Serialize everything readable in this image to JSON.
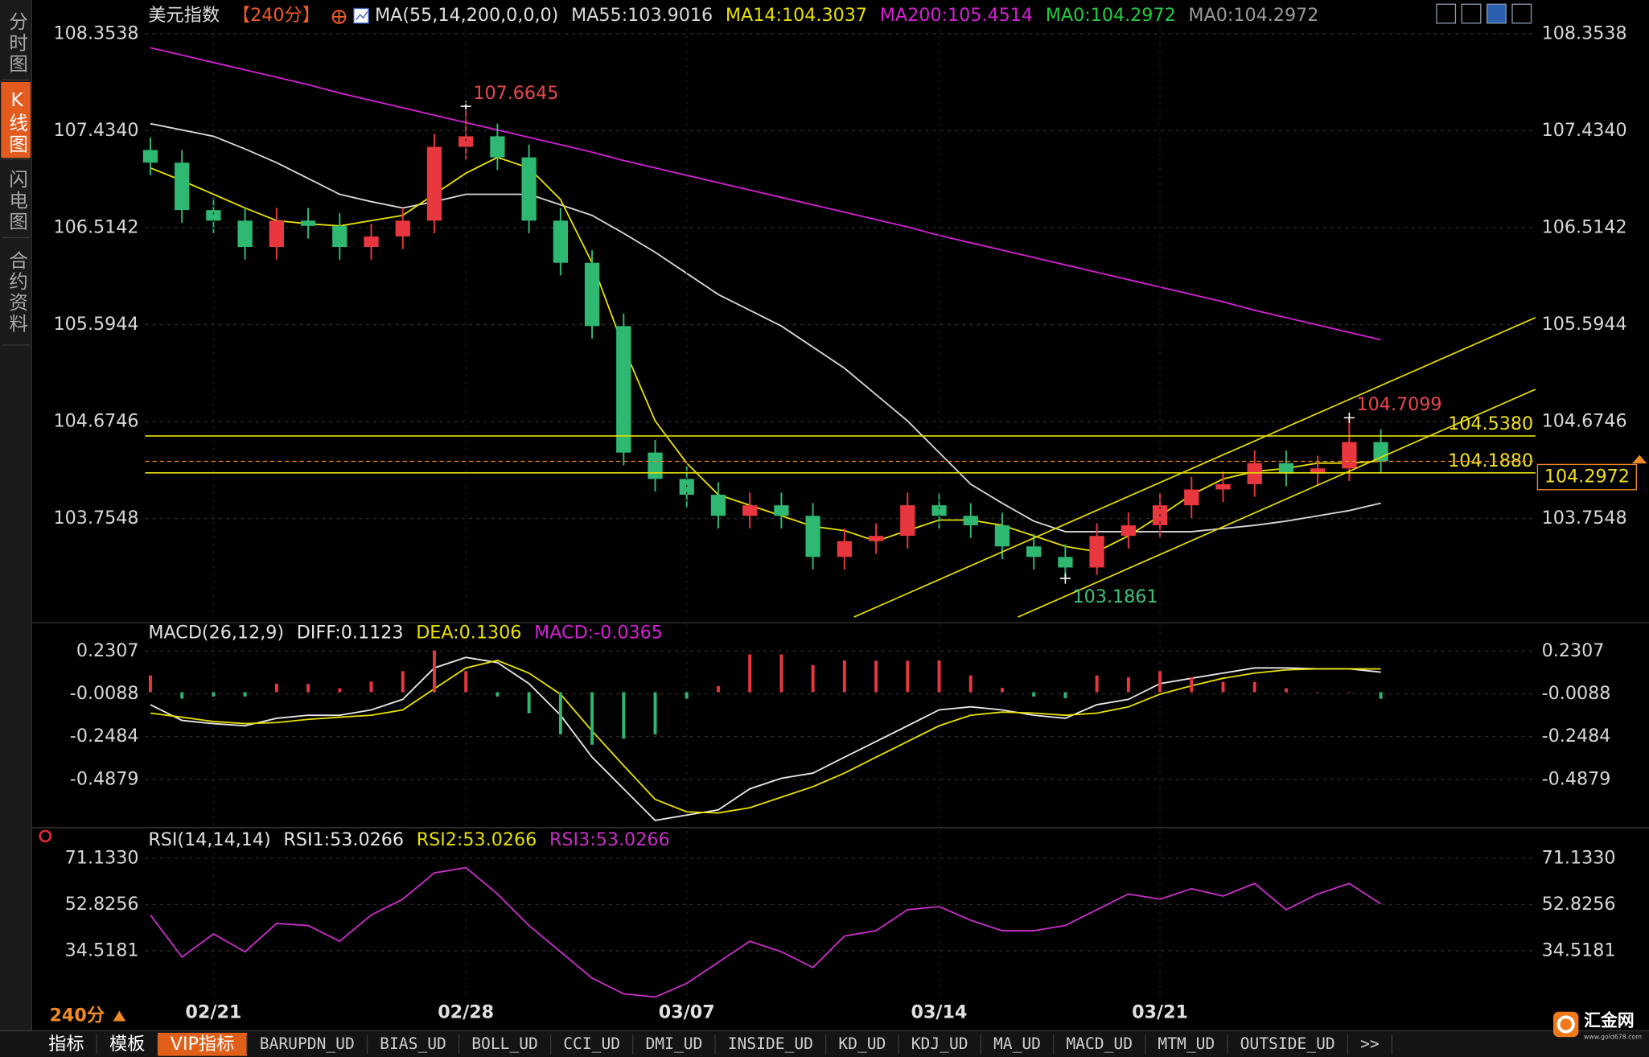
{
  "app": {
    "sidebar": [
      "分时图",
      "K线图",
      "闪电图",
      "合约资料"
    ],
    "active_sidebar": 1,
    "period": "240分",
    "tabs": [
      "指标",
      "模板",
      "VIP指标",
      "BARUPDN_UD",
      "BIAS_UD",
      "BOLL_UD",
      "CCI_UD",
      "DMI_UD",
      "INSIDE_UD",
      "KD_UD",
      "KDJ_UD",
      "MA_UD",
      "MACD_UD",
      "MTM_UD",
      "OUTSIDE_UD",
      ">>"
    ],
    "active_tab": 2,
    "logo": "汇金网",
    "logo_url": "www.gold678.com"
  },
  "chart_data": [
    {
      "type": "candlestick",
      "title": "美元指数",
      "period": "【240分】",
      "indicator": "MA(55,14,200,0,0,0)",
      "categories": [
        null,
        null,
        "02/21",
        null,
        null,
        null,
        null,
        null,
        null,
        null,
        "02/28",
        null,
        null,
        null,
        null,
        null,
        null,
        "03/07",
        null,
        null,
        null,
        null,
        null,
        null,
        null,
        "03/14",
        null,
        null,
        null,
        null,
        null,
        null,
        "03/21",
        null,
        null,
        null,
        null,
        null,
        null,
        null
      ],
      "open": [
        107.25,
        107.13,
        106.68,
        106.58,
        106.33,
        106.58,
        106.53,
        106.33,
        106.43,
        106.58,
        107.28,
        107.38,
        107.18,
        106.58,
        106.18,
        105.58,
        104.38,
        104.13,
        103.98,
        103.78,
        103.88,
        103.78,
        103.39,
        103.54,
        103.59,
        103.88,
        103.78,
        103.69,
        103.49,
        103.39,
        103.29,
        103.59,
        103.69,
        103.88,
        104.03,
        104.08,
        104.28,
        104.18,
        104.23,
        104.48
      ],
      "high": [
        107.37,
        107.25,
        106.8,
        106.7,
        106.7,
        106.7,
        106.65,
        106.55,
        106.7,
        107.4,
        107.6645,
        107.5,
        107.3,
        106.7,
        106.3,
        105.7,
        104.5,
        104.25,
        104.1,
        104.0,
        104.0,
        103.9,
        103.66,
        103.71,
        104.0,
        104.0,
        103.9,
        103.81,
        103.61,
        103.51,
        103.71,
        103.81,
        104.0,
        104.15,
        104.2,
        104.4,
        104.4,
        104.35,
        104.7099,
        104.6
      ],
      "low": [
        107.01,
        106.56,
        106.46,
        106.21,
        106.21,
        106.41,
        106.21,
        106.21,
        106.31,
        106.46,
        107.16,
        107.06,
        106.46,
        106.06,
        105.46,
        104.26,
        104.01,
        103.86,
        103.66,
        103.66,
        103.66,
        103.27,
        103.27,
        103.42,
        103.47,
        103.66,
        103.57,
        103.37,
        103.27,
        103.1861,
        103.22,
        103.47,
        103.57,
        103.76,
        103.91,
        103.96,
        104.06,
        104.06,
        104.11,
        104.18
      ],
      "close": [
        107.13,
        106.68,
        106.58,
        106.33,
        106.58,
        106.53,
        106.33,
        106.43,
        106.58,
        107.28,
        107.38,
        107.18,
        106.58,
        106.18,
        105.58,
        104.38,
        104.13,
        103.98,
        103.78,
        103.88,
        103.78,
        103.39,
        103.54,
        103.59,
        103.88,
        103.78,
        103.69,
        103.49,
        103.39,
        103.29,
        103.59,
        103.69,
        103.88,
        104.03,
        104.08,
        104.28,
        104.18,
        104.23,
        104.48,
        104.2972
      ],
      "up_color": "#e8373e",
      "down_color": "#2eb872",
      "series": [
        {
          "name": "MA55:103.9016",
          "color": "#d8d8d8",
          "values": [
            107.5,
            107.44,
            107.38,
            107.26,
            107.13,
            106.98,
            106.83,
            106.76,
            106.7,
            106.76,
            106.83,
            106.83,
            106.83,
            106.73,
            106.63,
            106.46,
            106.28,
            106.08,
            105.88,
            105.73,
            105.58,
            105.38,
            105.18,
            104.93,
            104.68,
            104.38,
            104.08,
            103.9,
            103.73,
            103.63,
            103.63,
            103.63,
            103.63,
            103.63,
            103.66,
            103.69,
            103.73,
            103.78,
            103.83,
            103.9
          ]
        },
        {
          "name": "MA14:104.3037",
          "color": "#e8e000",
          "values": [
            107.08,
            106.96,
            106.83,
            106.7,
            106.58,
            106.55,
            106.53,
            106.58,
            106.63,
            106.83,
            107.03,
            107.18,
            107.08,
            106.78,
            106.18,
            105.38,
            104.68,
            104.28,
            103.98,
            103.88,
            103.78,
            103.68,
            103.64,
            103.54,
            103.64,
            103.74,
            103.74,
            103.69,
            103.59,
            103.49,
            103.44,
            103.59,
            103.78,
            103.98,
            104.13,
            104.2,
            104.23,
            104.28,
            104.28,
            104.3
          ]
        },
        {
          "name": "MA200:105.4514",
          "color": "#d41fd4",
          "values": [
            108.22,
            108.15,
            108.08,
            108.01,
            107.94,
            107.87,
            107.79,
            107.72,
            107.65,
            107.58,
            107.51,
            107.44,
            107.37,
            107.3,
            107.23,
            107.15,
            107.08,
            107.01,
            106.94,
            106.87,
            106.8,
            106.73,
            106.66,
            106.59,
            106.52,
            106.44,
            106.37,
            106.3,
            106.23,
            106.16,
            106.09,
            106.02,
            105.95,
            105.88,
            105.81,
            105.73,
            105.66,
            105.59,
            105.52,
            105.45
          ]
        }
      ],
      "extra_after": [
        {
          "name": "MA0:104.2972",
          "color": "#22cc44"
        },
        {
          "name": "MA0:104.2972",
          "color": "#9a9a9a"
        }
      ],
      "ylim": [
        102.787,
        108.473
      ],
      "yticks": [
        108.3538,
        {
          "value": 107.434,
          "label": "107.4340"
        },
        106.5142,
        105.5944,
        104.6746,
        103.7548
      ],
      "hlines": [
        {
          "value": 104.538,
          "label": "104.5380"
        },
        {
          "value": 104.188,
          "label": "104.1880"
        }
      ],
      "last": 104.2972,
      "trendlines": [
        {
          "x": [
            22.3,
            43.9
          ],
          "y": [
            102.82,
            105.66
          ]
        },
        {
          "x": [
            27.5,
            43.9
          ],
          "y": [
            102.82,
            104.98
          ]
        }
      ],
      "annotations": [
        {
          "index": 10,
          "at": "high"
        },
        {
          "index": 29,
          "at": "low"
        },
        {
          "index": 38,
          "at": "high"
        }
      ]
    },
    {
      "type": "line",
      "title": "MACD(26,12,9)",
      "series": [
        {
          "name": "DIFF:0.1123",
          "color": "#e8e8e8",
          "values": [
            -0.07,
            -0.158,
            -0.176,
            -0.188,
            -0.146,
            -0.129,
            -0.129,
            -0.099,
            -0.04,
            0.136,
            0.195,
            0.166,
            0.048,
            -0.129,
            -0.364,
            -0.541,
            -0.718,
            -0.688,
            -0.659,
            -0.541,
            -0.482,
            -0.453,
            -0.364,
            -0.276,
            -0.188,
            -0.099,
            -0.082,
            -0.099,
            -0.129,
            -0.146,
            -0.07,
            -0.04,
            0.048,
            0.078,
            0.107,
            0.136,
            0.136,
            0.131,
            0.131,
            0.1123
          ]
        },
        {
          "name": "DEA:0.1306",
          "color": "#e8e000",
          "values": [
            -0.117,
            -0.14,
            -0.164,
            -0.176,
            -0.17,
            -0.152,
            -0.14,
            -0.129,
            -0.099,
            0.019,
            0.136,
            0.178,
            0.107,
            -0.011,
            -0.217,
            -0.411,
            -0.6,
            -0.67,
            -0.676,
            -0.647,
            -0.588,
            -0.529,
            -0.453,
            -0.364,
            -0.276,
            -0.188,
            -0.129,
            -0.111,
            -0.117,
            -0.129,
            -0.117,
            -0.082,
            -0.011,
            0.036,
            0.078,
            0.107,
            0.125,
            0.131,
            0.131,
            0.1306
          ]
        },
        {
          "name": "MACD:-0.0365",
          "color": "#d41fd4",
          "style": "bar",
          "up_color": "#e8373e",
          "down_color": "#2eb872",
          "values": [
            0.094,
            -0.036,
            -0.024,
            -0.024,
            0.048,
            0.046,
            0.022,
            0.06,
            0.118,
            0.234,
            0.118,
            -0.024,
            -0.118,
            -0.236,
            -0.294,
            -0.26,
            -0.236,
            -0.036,
            0.034,
            0.212,
            0.212,
            0.152,
            0.178,
            0.176,
            0.176,
            0.178,
            0.094,
            0.024,
            -0.024,
            -0.034,
            0.094,
            0.084,
            0.118,
            0.084,
            0.058,
            0.058,
            0.022,
            0,
            0,
            -0.0365
          ]
        }
      ],
      "ylim": [
        -0.747,
        0.372
      ],
      "yticks": [
        0.2307,
        -0.0088,
        -0.2484,
        -0.4879
      ]
    },
    {
      "type": "line",
      "title": "RSI(14,14,14)",
      "extra_before": [
        {
          "name": "RSI1:53.0266",
          "color": "#e8e8e8"
        },
        {
          "name": "RSI2:53.0266",
          "color": "#e8e000"
        }
      ],
      "series": [
        {
          "name": "RSI3:53.0266",
          "color": "#c82ec8",
          "values": [
            48.67,
            32.03,
            41.18,
            34.1,
            45.34,
            44.51,
            38.27,
            48.67,
            54.91,
            65.31,
            67.39,
            56.99,
            44.51,
            34.1,
            23.7,
            17.46,
            16.22,
            21.63,
            29.95,
            38.27,
            34.1,
            27.87,
            40.35,
            42.43,
            50.75,
            51.99,
            46.59,
            42.43,
            42.43,
            44.51,
            50.75,
            56.99,
            54.91,
            59.07,
            56.15,
            61.15,
            50.75,
            56.99,
            61.15,
            53.0266
          ]
        }
      ],
      "ylim": [
        15.38,
        81.95
      ],
      "yticks": [
        {
          "value": 71.133,
          "label": "71.1330"
        },
        52.8256,
        34.5181
      ]
    }
  ]
}
